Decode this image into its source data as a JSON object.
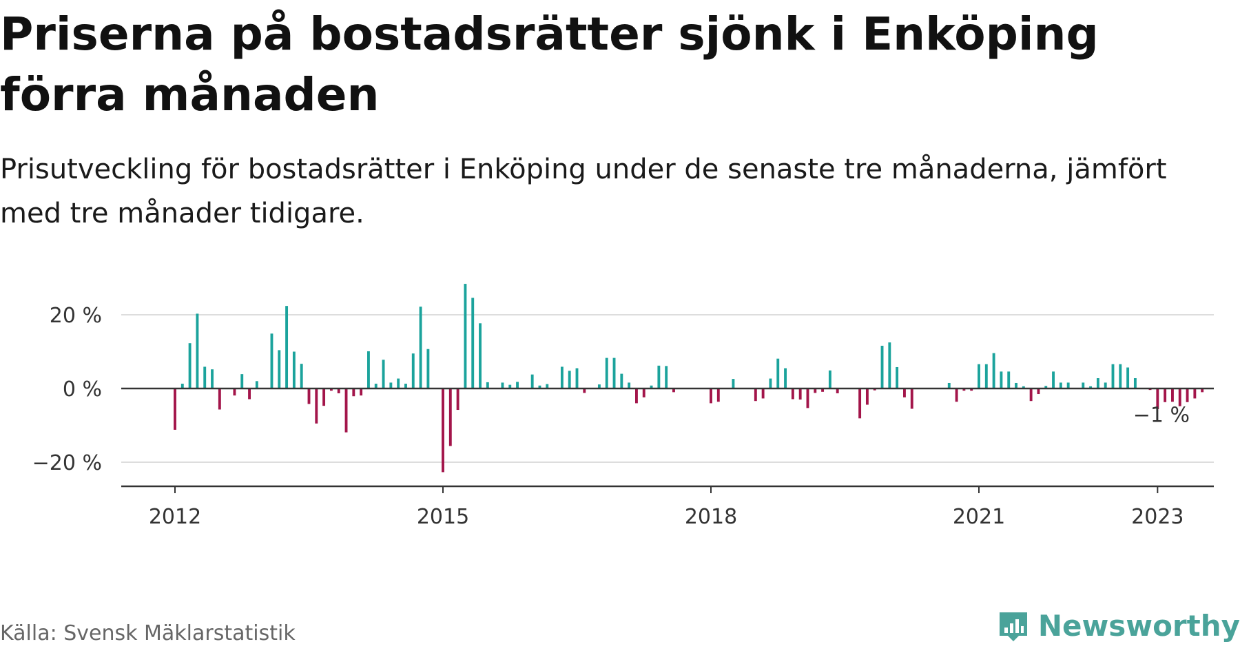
{
  "title": "Priserna på bostadsrätter sjönk i Enköping förra månaden",
  "subtitle": "Prisutveckling för bostadsrätter i Enköping under de senaste tre månaderna, jämfört med tre månader tidigare.",
  "source": "Källa: Svensk Mäklarstatistik",
  "brand": {
    "name": "Newsworthy",
    "logo_icon": "bar-chart-badge-icon",
    "color": "#4aa39a"
  },
  "colors": {
    "positive": "#1ba39c",
    "negative": "#a3154a",
    "grid": "#dddddd",
    "axis": "#333333"
  },
  "chart_data": {
    "type": "bar",
    "title": "Priserna på bostadsrätter sjönk i Enköping förra månaden",
    "subtitle": "Prisutveckling för bostadsrätter i Enköping under de senaste tre månaderna, jämfört med tre månader tidigare.",
    "xlabel": "",
    "ylabel": "",
    "x_ticks": [
      2012,
      2015,
      2018,
      2021,
      2023
    ],
    "y_ticks": [
      -20,
      0,
      20
    ],
    "y_tick_labels": [
      "−20 %",
      "0 %",
      "20 %"
    ],
    "ylim": [
      -27,
      29
    ],
    "xlim": [
      2011.4,
      2023.6
    ],
    "grid": true,
    "annotation": {
      "text": "−1 %",
      "x": 2023.0,
      "y": -1
    },
    "start": "2012-01",
    "interval": "month",
    "values": [
      -11.2,
      1.3,
      12.3,
      20.3,
      5.9,
      5.2,
      -5.7,
      0,
      -1.9,
      3.9,
      -2.9,
      2.0,
      0,
      14.9,
      10.4,
      22.4,
      10.0,
      6.7,
      -4.2,
      -9.5,
      -4.7,
      -0.6,
      -1.3,
      -11.9,
      -2.1,
      -1.9,
      10.1,
      1.3,
      7.8,
      1.6,
      2.7,
      1.3,
      9.5,
      22.2,
      10.7,
      0,
      -22.7,
      -15.6,
      -5.8,
      28.4,
      24.6,
      17.7,
      1.7,
      0,
      1.6,
      1.0,
      1.8,
      0,
      3.8,
      0.8,
      1.2,
      0,
      5.9,
      4.8,
      5.5,
      -1.2,
      0,
      1.1,
      8.3,
      8.3,
      4.0,
      1.6,
      -4.0,
      -2.4,
      0.8,
      6.2,
      6.1,
      -1.0,
      0,
      0,
      0,
      0,
      -4.0,
      -3.6,
      0,
      2.6,
      0,
      0,
      -3.4,
      -2.7,
      2.7,
      8.1,
      5.5,
      -2.9,
      -3.0,
      -5.3,
      -1.2,
      -0.9,
      4.9,
      -1.3,
      0,
      0,
      -8.1,
      -4.4,
      -0.5,
      11.6,
      12.5,
      5.8,
      -2.4,
      -5.5,
      0,
      0,
      0,
      0,
      1.5,
      -3.6,
      -0.6,
      -0.6,
      6.6,
      6.6,
      9.6,
      4.6,
      4.6,
      1.5,
      0.6,
      -3.4,
      -1.5,
      0.7,
      4.6,
      1.6,
      1.6,
      0,
      1.6,
      0.6,
      2.8,
      1.6,
      6.6,
      6.6,
      5.7,
      2.8,
      0,
      -0.4,
      -5.6,
      -3.7,
      -3.6,
      -4.8,
      -3.7,
      -2.7,
      -1.0
    ]
  }
}
